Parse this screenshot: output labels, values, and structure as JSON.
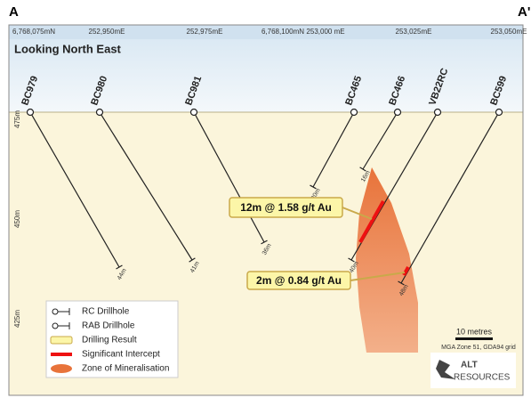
{
  "header": {
    "section_start": "A",
    "section_end": "A'",
    "view": "Looking North East",
    "coordinates": [
      "6,768,075mN",
      "252,950mE",
      "252,975mE",
      "6,768,100mN",
      "253,000 mE",
      "253,025mE",
      "253,050mE"
    ]
  },
  "elevations": [
    "475m",
    "450m",
    "425m"
  ],
  "drillholes": [
    {
      "name": "BC979",
      "depth": "44m"
    },
    {
      "name": "BC980",
      "depth": "41m"
    },
    {
      "name": "BC981",
      "depth": "36m"
    },
    {
      "name": "BC465",
      "depth": "20m"
    },
    {
      "name": "BC466",
      "depth": "16m"
    },
    {
      "name": "VB22RC",
      "depth": "40m"
    },
    {
      "name": "BC599",
      "depth": "48m"
    }
  ],
  "callouts": [
    "12m @ 1.58 g/t Au",
    "2m @ 0.84 g/t Au"
  ],
  "legend": [
    "RC Drillhole",
    "RAB Drillhole",
    "Drilling Result",
    "Significant Intercept",
    "Zone of Mineralisation"
  ],
  "scale": {
    "label": "10 metres",
    "grid": "MGA Zone 51, GDA94 grid"
  },
  "logo": {
    "top": "ALT",
    "bottom": "RESOURCES"
  }
}
